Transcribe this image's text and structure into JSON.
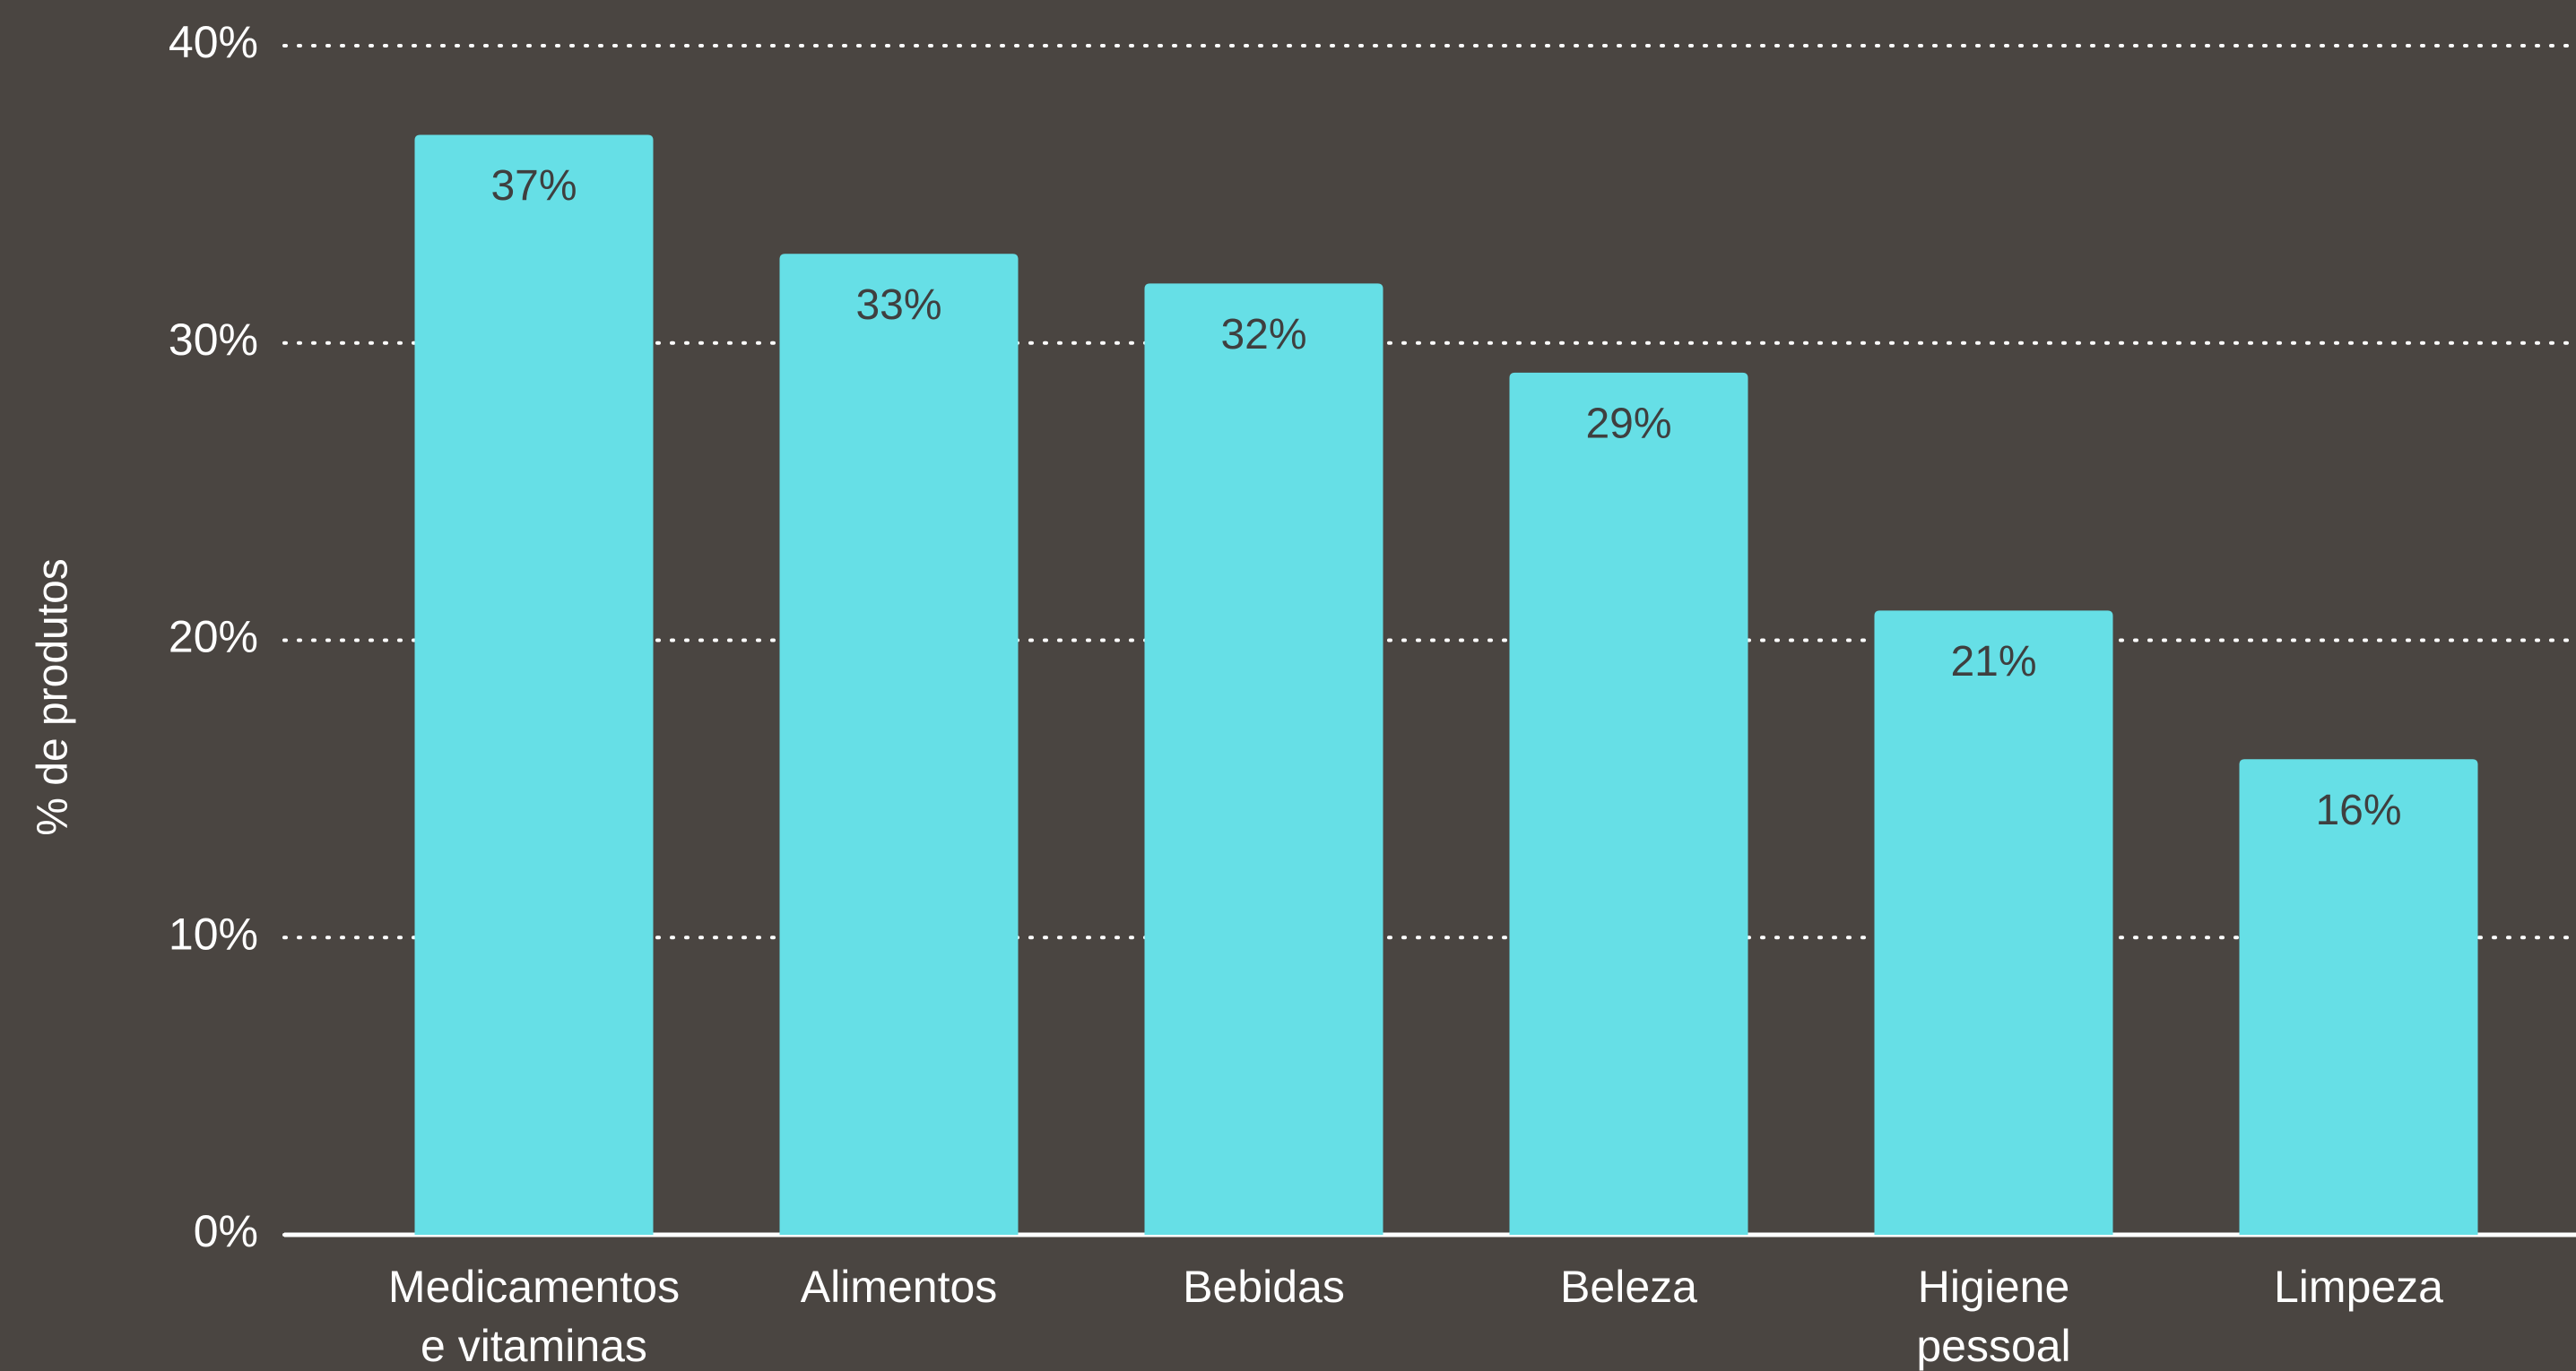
{
  "chart_data": {
    "type": "bar",
    "y_label": "% de produtos",
    "categories": [
      "Medicamentos e vitaminas",
      "Alimentos",
      "Bebidas",
      "Beleza",
      "Higiene pessoal",
      "Limpeza"
    ],
    "values": [
      37,
      33,
      32,
      29,
      21,
      16
    ],
    "value_labels": [
      "37%",
      "33%",
      "32%",
      "29%",
      "21%",
      "16%"
    ],
    "color": "#66dfe6",
    "ylim": [
      0,
      40
    ],
    "yticks": [
      {
        "value": 0,
        "label": "0%"
      },
      {
        "value": 10,
        "label": "10%"
      },
      {
        "value": 20,
        "label": "20%"
      },
      {
        "value": 30,
        "label": "30%"
      },
      {
        "value": 40,
        "label": "40%"
      }
    ],
    "grid": true
  }
}
